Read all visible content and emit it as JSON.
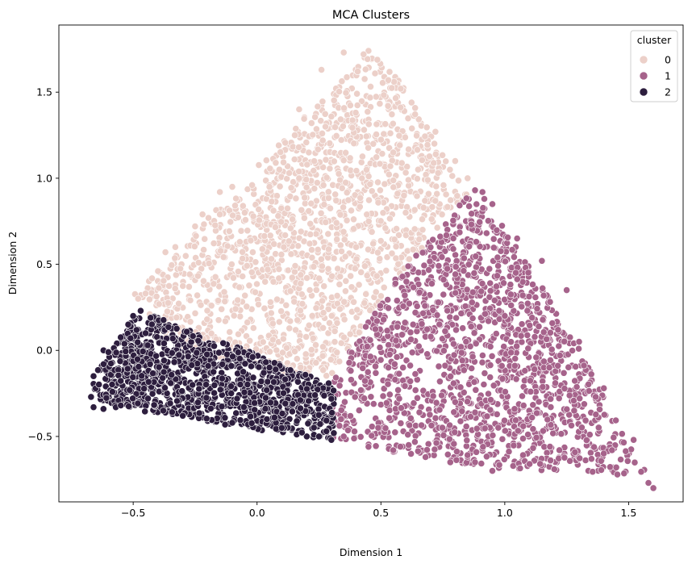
{
  "chart_data": {
    "type": "scatter",
    "title": "MCA Clusters",
    "xlabel": "Dimension 1",
    "ylabel": "Dimension 2",
    "xlim": [
      -0.8,
      1.72
    ],
    "ylim": [
      -0.88,
      1.89
    ],
    "x_ticks": [
      -0.5,
      0.0,
      0.5,
      1.0,
      1.5
    ],
    "x_tick_labels": [
      "−0.5",
      "0.0",
      "0.5",
      "1.0",
      "1.5"
    ],
    "y_ticks": [
      -0.5,
      0.0,
      0.5,
      1.0,
      1.5
    ],
    "y_tick_labels": [
      "−0.5",
      "0.0",
      "0.5",
      "1.0",
      "1.5"
    ],
    "grid": false,
    "legend": {
      "title": "cluster",
      "placement": "top-right"
    },
    "series": [
      {
        "name": "0",
        "color": "#ecd0c9",
        "region": [
          [
            -0.5,
            0.32
          ],
          [
            0.45,
            1.74
          ],
          [
            0.58,
            1.56
          ],
          [
            0.85,
            0.9
          ],
          [
            0.55,
            0.4
          ],
          [
            0.3,
            -0.15
          ],
          [
            0.05,
            -0.12
          ],
          [
            -0.35,
            0.03
          ]
        ],
        "points": [
          [
            0.45,
            1.74
          ],
          [
            0.43,
            1.72
          ],
          [
            0.35,
            1.73
          ],
          [
            0.26,
            1.63
          ],
          [
            0.53,
            1.57
          ],
          [
            0.58,
            1.52
          ],
          [
            0.17,
            1.4
          ],
          [
            0.22,
            1.32
          ],
          [
            0.72,
            1.27
          ],
          [
            0.09,
            1.05
          ],
          [
            0.13,
            1.03
          ],
          [
            0.17,
            1.0
          ],
          [
            0.05,
            0.95
          ],
          [
            -0.02,
            0.96
          ],
          [
            -0.1,
            0.95
          ],
          [
            -0.15,
            0.92
          ],
          [
            -0.05,
            0.8
          ],
          [
            -0.15,
            0.79
          ],
          [
            -0.22,
            0.79
          ],
          [
            -0.25,
            0.72
          ],
          [
            -0.33,
            0.6
          ],
          [
            -0.37,
            0.57
          ],
          [
            -0.4,
            0.46
          ],
          [
            -0.45,
            0.33
          ],
          [
            -0.48,
            0.3
          ],
          [
            0.55,
            1.15
          ],
          [
            0.65,
            1.05
          ],
          [
            0.8,
            1.1
          ],
          [
            0.85,
            1.0
          ],
          [
            0.6,
            0.8
          ],
          [
            0.4,
            0.6
          ]
        ]
      },
      {
        "name": "1",
        "color": "#a6638b",
        "region": [
          [
            0.3,
            -0.52
          ],
          [
            0.31,
            -0.15
          ],
          [
            0.55,
            0.4
          ],
          [
            0.87,
            0.93
          ],
          [
            0.92,
            0.88
          ],
          [
            1.25,
            0.15
          ],
          [
            1.5,
            -0.55
          ],
          [
            1.62,
            -0.82
          ],
          [
            1.45,
            -0.72
          ],
          [
            0.92,
            -0.68
          ],
          [
            0.5,
            -0.58
          ]
        ],
        "points": [
          [
            0.88,
            0.93
          ],
          [
            0.91,
            0.92
          ],
          [
            0.95,
            0.85
          ],
          [
            1.05,
            0.65
          ],
          [
            1.15,
            0.52
          ],
          [
            1.25,
            0.35
          ],
          [
            1.3,
            0.05
          ],
          [
            1.4,
            -0.22
          ],
          [
            1.52,
            -0.52
          ],
          [
            1.6,
            -0.8
          ],
          [
            1.58,
            -0.77
          ],
          [
            1.45,
            -0.68
          ],
          [
            1.35,
            -0.63
          ],
          [
            1.2,
            -0.69
          ],
          [
            1.1,
            -0.66
          ],
          [
            0.95,
            -0.7
          ],
          [
            0.88,
            -0.65
          ],
          [
            0.78,
            -0.65
          ],
          [
            0.68,
            -0.62
          ],
          [
            0.55,
            -0.58
          ],
          [
            0.45,
            -0.56
          ],
          [
            0.35,
            -0.5
          ],
          [
            0.63,
            0.15
          ],
          [
            1.0,
            0.2
          ],
          [
            1.18,
            -0.1
          ],
          [
            1.28,
            -0.35
          ],
          [
            0.8,
            -0.3
          ]
        ]
      },
      {
        "name": "2",
        "color": "#2d1e3e",
        "region": [
          [
            -0.5,
            0.2
          ],
          [
            -0.46,
            0.22
          ],
          [
            0.05,
            -0.05
          ],
          [
            0.31,
            -0.2
          ],
          [
            0.31,
            -0.52
          ],
          [
            0.2,
            -0.5
          ],
          [
            -0.05,
            -0.45
          ],
          [
            -0.35,
            -0.38
          ],
          [
            -0.55,
            -0.33
          ],
          [
            -0.64,
            -0.3
          ],
          [
            -0.67,
            -0.17
          ],
          [
            -0.6,
            -0.02
          ]
        ],
        "points": [
          [
            -0.66,
            -0.15
          ],
          [
            -0.67,
            -0.27
          ],
          [
            -0.66,
            -0.33
          ],
          [
            -0.62,
            0.0
          ],
          [
            -0.6,
            -0.01
          ],
          [
            -0.62,
            -0.34
          ],
          [
            -0.57,
            -0.33
          ],
          [
            -0.55,
            -0.32
          ],
          [
            -0.5,
            0.2
          ],
          [
            -0.47,
            0.23
          ],
          [
            -0.52,
            0.15
          ],
          [
            -0.45,
            0.1
          ],
          [
            0.3,
            -0.52
          ],
          [
            0.25,
            -0.5
          ],
          [
            0.28,
            -0.47
          ],
          [
            0.1,
            -0.45
          ],
          [
            -0.1,
            -0.42
          ],
          [
            -0.3,
            -0.38
          ],
          [
            0.05,
            -0.1
          ]
        ]
      }
    ]
  }
}
